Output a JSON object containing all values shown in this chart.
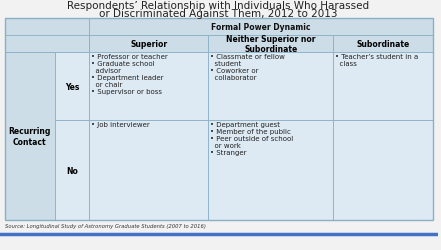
{
  "title_line1": "Respondents’ Relationship with Individuals Who Harassed",
  "title_line2": "or Discriminated Against Them, 2012 to 2013",
  "title_fontsize": 7.5,
  "source_text": "Source: Longitudinal Study of Astronomy Graduate Students (2007 to 2016)",
  "header_bg": "#ccdde8",
  "cell_bg": "#ddeaf3",
  "border_color": "#8ab0c8",
  "col_header_1": "Superior",
  "col_header_2": "Neither Superior nor\nSubordinate",
  "col_header_3": "Subordinate",
  "span_header": "Formal Power Dynamic",
  "row_label_main": "Recurring\nContact",
  "row_label_yes": "Yes",
  "row_label_no": "No",
  "cell_superior_yes": "• Professor or teacher\n• Graduate school\n  advisor\n• Department leader\n  or chair\n• Supervisor or boss",
  "cell_neither_yes": "• Classmate or fellow\n  student\n• Coworker or\n  collaborator",
  "cell_subordinate_yes": "• Teacher’s student in a\n  class",
  "cell_superior_no": "• Job interviewer",
  "cell_neither_no": "• Department guest\n• Member of the public\n• Peer outside of school\n  or work\n• Stranger",
  "cell_subordinate_no": "",
  "fig_bg": "#f2f2f2",
  "bottom_line_color": "#4472c4"
}
